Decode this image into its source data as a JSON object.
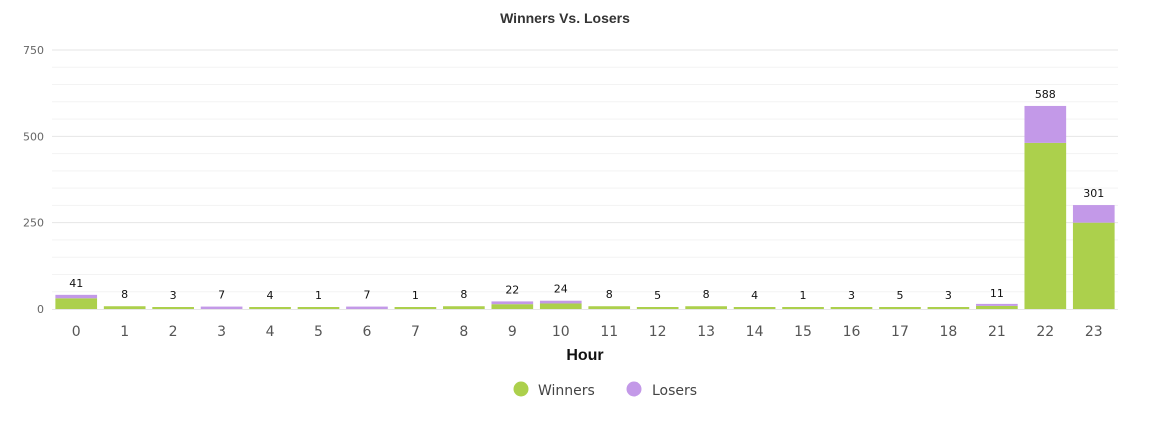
{
  "chart_data": {
    "type": "bar",
    "stacked": true,
    "title": "Winners Vs. Losers",
    "xlabel": "Hour",
    "ylabel": "",
    "ylim": [
      0,
      750
    ],
    "yticks": [
      0,
      250,
      500,
      750
    ],
    "grid": true,
    "legend_position": "bottom",
    "categories": [
      "0",
      "1",
      "2",
      "3",
      "4",
      "5",
      "6",
      "7",
      "8",
      "9",
      "10",
      "11",
      "12",
      "13",
      "14",
      "15",
      "16",
      "17",
      "18",
      "21",
      "22",
      "23"
    ],
    "series": [
      {
        "name": "Winners",
        "color": "#acd04c",
        "values": [
          31,
          8,
          3,
          0,
          4,
          1,
          0,
          1,
          8,
          14,
          16,
          8,
          5,
          8,
          4,
          1,
          3,
          5,
          3,
          9,
          481,
          250
        ]
      },
      {
        "name": "Losers",
        "color": "#c399e8",
        "values": [
          10,
          0,
          0,
          7,
          0,
          0,
          7,
          0,
          0,
          8,
          8,
          0,
          0,
          0,
          0,
          0,
          0,
          0,
          0,
          2,
          107,
          51
        ]
      }
    ],
    "totals": [
      41,
      8,
      3,
      7,
      4,
      1,
      7,
      1,
      8,
      22,
      24,
      8,
      5,
      8,
      4,
      1,
      3,
      5,
      3,
      11,
      588,
      301
    ]
  }
}
